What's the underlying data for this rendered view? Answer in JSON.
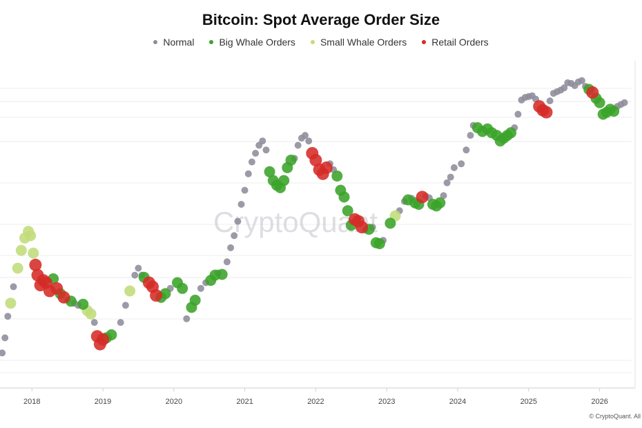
{
  "title": "Bitcoin: Spot Average Order Size",
  "legend": [
    {
      "label": "Normal",
      "color": "#8e8c9a"
    },
    {
      "label": "Big Whale Orders",
      "color": "#3aa329"
    },
    {
      "label": "Small Whale Orders",
      "color": "#c2dc7a"
    },
    {
      "label": "Retail Orders",
      "color": "#d52b27"
    }
  ],
  "watermark": "CryptoQuant",
  "copyright": "© CryptoQuant. All",
  "chart_data": {
    "type": "scatter",
    "title": "Bitcoin: Spot Average Order Size",
    "xlabel": "",
    "ylabel": "",
    "x_ticks": [
      "2018",
      "2019",
      "2020",
      "2021",
      "2022",
      "2023",
      "2024",
      "2025",
      "2026"
    ],
    "xlim": [
      2017.55,
      2026.5
    ],
    "y_scale": "log",
    "ylim": [
      3000,
      150000
    ],
    "grid": "horizontal",
    "legend_position": "top-center",
    "categories": [
      "Normal",
      "Big Whale Orders",
      "Small Whale Orders",
      "Retail Orders"
    ],
    "series_points": [
      [
        2017.58,
        4500,
        0
      ],
      [
        2017.62,
        5400,
        0
      ],
      [
        2017.66,
        7000,
        0
      ],
      [
        2017.7,
        8200,
        2
      ],
      [
        2017.74,
        10000,
        0
      ],
      [
        2017.8,
        12500,
        2
      ],
      [
        2017.85,
        15500,
        2
      ],
      [
        2017.9,
        18000,
        2
      ],
      [
        2017.95,
        19500,
        2
      ],
      [
        2017.98,
        18500,
        2
      ],
      [
        2018.02,
        15000,
        2
      ],
      [
        2018.05,
        13000,
        3
      ],
      [
        2018.08,
        11500,
        3
      ],
      [
        2018.12,
        10200,
        3
      ],
      [
        2018.16,
        10800,
        3
      ],
      [
        2018.2,
        10500,
        3
      ],
      [
        2018.25,
        9500,
        3
      ],
      [
        2018.3,
        11000,
        1
      ],
      [
        2018.35,
        9800,
        3
      ],
      [
        2018.4,
        9200,
        1
      ],
      [
        2018.45,
        8800,
        3
      ],
      [
        2018.5,
        8500,
        0
      ],
      [
        2018.55,
        8400,
        1
      ],
      [
        2018.6,
        8200,
        0
      ],
      [
        2018.65,
        8000,
        0
      ],
      [
        2018.72,
        8100,
        1
      ],
      [
        2018.78,
        7500,
        2
      ],
      [
        2018.83,
        7200,
        2
      ],
      [
        2018.88,
        6500,
        0
      ],
      [
        2018.92,
        5500,
        3
      ],
      [
        2018.96,
        5000,
        3
      ],
      [
        2019.0,
        5300,
        3
      ],
      [
        2019.05,
        5400,
        1
      ],
      [
        2019.12,
        5600,
        1
      ],
      [
        2019.25,
        6500,
        0
      ],
      [
        2019.32,
        8000,
        0
      ],
      [
        2019.38,
        9500,
        2
      ],
      [
        2019.45,
        11500,
        0
      ],
      [
        2019.5,
        12500,
        0
      ],
      [
        2019.55,
        11500,
        0
      ],
      [
        2019.58,
        11200,
        1
      ],
      [
        2019.65,
        10500,
        3
      ],
      [
        2019.7,
        10000,
        3
      ],
      [
        2019.75,
        9000,
        3
      ],
      [
        2019.82,
        8800,
        1
      ],
      [
        2019.88,
        9200,
        1
      ],
      [
        2019.95,
        9800,
        0
      ],
      [
        2020.05,
        10500,
        1
      ],
      [
        2020.12,
        9800,
        1
      ],
      [
        2020.18,
        6800,
        0
      ],
      [
        2020.25,
        7800,
        1
      ],
      [
        2020.3,
        8500,
        1
      ],
      [
        2020.38,
        9800,
        0
      ],
      [
        2020.45,
        10500,
        0
      ],
      [
        2020.52,
        10800,
        1
      ],
      [
        2020.58,
        11500,
        1
      ],
      [
        2020.62,
        11800,
        0
      ],
      [
        2020.68,
        11600,
        1
      ],
      [
        2020.75,
        13500,
        0
      ],
      [
        2020.8,
        16000,
        0
      ],
      [
        2020.85,
        18500,
        0
      ],
      [
        2020.9,
        22000,
        0
      ],
      [
        2020.95,
        27000,
        0
      ],
      [
        2021.0,
        32000,
        0
      ],
      [
        2021.05,
        39000,
        0
      ],
      [
        2021.1,
        45000,
        0
      ],
      [
        2021.15,
        50000,
        0
      ],
      [
        2021.2,
        55000,
        0
      ],
      [
        2021.25,
        58000,
        0
      ],
      [
        2021.3,
        52000,
        0
      ],
      [
        2021.35,
        40000,
        1
      ],
      [
        2021.4,
        36000,
        1
      ],
      [
        2021.45,
        34000,
        1
      ],
      [
        2021.5,
        33000,
        1
      ],
      [
        2021.55,
        36000,
        1
      ],
      [
        2021.6,
        42000,
        1
      ],
      [
        2021.65,
        46000,
        1
      ],
      [
        2021.7,
        47000,
        0
      ],
      [
        2021.75,
        55000,
        0
      ],
      [
        2021.8,
        60000,
        0
      ],
      [
        2021.85,
        62000,
        0
      ],
      [
        2021.9,
        58000,
        0
      ],
      [
        2021.95,
        50000,
        3
      ],
      [
        2022.0,
        46000,
        3
      ],
      [
        2022.05,
        41000,
        3
      ],
      [
        2022.1,
        39000,
        3
      ],
      [
        2022.15,
        42000,
        3
      ],
      [
        2022.2,
        44000,
        0
      ],
      [
        2022.25,
        41000,
        0
      ],
      [
        2022.3,
        38000,
        1
      ],
      [
        2022.35,
        32000,
        1
      ],
      [
        2022.4,
        29500,
        1
      ],
      [
        2022.45,
        25000,
        1
      ],
      [
        2022.5,
        21000,
        1
      ],
      [
        2022.55,
        22500,
        3
      ],
      [
        2022.6,
        22000,
        3
      ],
      [
        2022.65,
        20500,
        3
      ],
      [
        2022.7,
        19800,
        0
      ],
      [
        2022.75,
        20000,
        1
      ],
      [
        2022.8,
        20500,
        0
      ],
      [
        2022.85,
        17000,
        1
      ],
      [
        2022.9,
        16800,
        1
      ],
      [
        2022.95,
        17500,
        0
      ],
      [
        2023.05,
        21500,
        1
      ],
      [
        2023.12,
        23500,
        2
      ],
      [
        2023.18,
        25000,
        0
      ],
      [
        2023.25,
        28000,
        0
      ],
      [
        2023.3,
        28500,
        1
      ],
      [
        2023.35,
        29000,
        0
      ],
      [
        2023.4,
        27500,
        1
      ],
      [
        2023.45,
        27000,
        1
      ],
      [
        2023.5,
        29500,
        3
      ],
      [
        2023.55,
        29800,
        0
      ],
      [
        2023.6,
        29200,
        0
      ],
      [
        2023.65,
        27000,
        1
      ],
      [
        2023.7,
        26500,
        1
      ],
      [
        2023.75,
        27500,
        1
      ],
      [
        2023.8,
        30000,
        0
      ],
      [
        2023.85,
        35000,
        0
      ],
      [
        2023.9,
        37500,
        0
      ],
      [
        2023.95,
        42000,
        0
      ],
      [
        2024.05,
        44000,
        0
      ],
      [
        2024.12,
        52000,
        0
      ],
      [
        2024.18,
        62000,
        0
      ],
      [
        2024.22,
        70000,
        0
      ],
      [
        2024.28,
        68000,
        1
      ],
      [
        2024.35,
        65000,
        1
      ],
      [
        2024.42,
        67000,
        1
      ],
      [
        2024.48,
        64000,
        1
      ],
      [
        2024.55,
        62000,
        1
      ],
      [
        2024.6,
        58000,
        1
      ],
      [
        2024.65,
        60000,
        1
      ],
      [
        2024.7,
        62000,
        1
      ],
      [
        2024.75,
        64000,
        1
      ],
      [
        2024.8,
        68000,
        0
      ],
      [
        2024.85,
        80000,
        0
      ],
      [
        2024.9,
        95000,
        0
      ],
      [
        2024.95,
        98000,
        0
      ],
      [
        2025.0,
        99000,
        0
      ],
      [
        2025.05,
        100000,
        0
      ],
      [
        2025.1,
        96000,
        0
      ],
      [
        2025.15,
        88000,
        3
      ],
      [
        2025.2,
        84000,
        3
      ],
      [
        2025.25,
        82000,
        3
      ],
      [
        2025.3,
        94000,
        0
      ],
      [
        2025.35,
        103000,
        0
      ],
      [
        2025.4,
        105000,
        0
      ],
      [
        2025.45,
        107000,
        0
      ],
      [
        2025.5,
        110000,
        0
      ],
      [
        2025.55,
        117000,
        0
      ],
      [
        2025.6,
        116000,
        0
      ],
      [
        2025.65,
        113000,
        0
      ],
      [
        2025.7,
        118000,
        0
      ],
      [
        2025.75,
        120000,
        0
      ],
      [
        2025.8,
        112000,
        0
      ],
      [
        2025.85,
        108000,
        1
      ],
      [
        2025.9,
        104000,
        3
      ],
      [
        2025.95,
        97000,
        1
      ],
      [
        2026.0,
        92000,
        1
      ],
      [
        2026.05,
        80000,
        1
      ],
      [
        2026.1,
        82000,
        1
      ],
      [
        2026.15,
        85000,
        1
      ],
      [
        2026.2,
        83000,
        1
      ],
      [
        2026.25,
        88000,
        0
      ],
      [
        2026.3,
        90000,
        0
      ],
      [
        2026.35,
        92000,
        0
      ]
    ]
  }
}
